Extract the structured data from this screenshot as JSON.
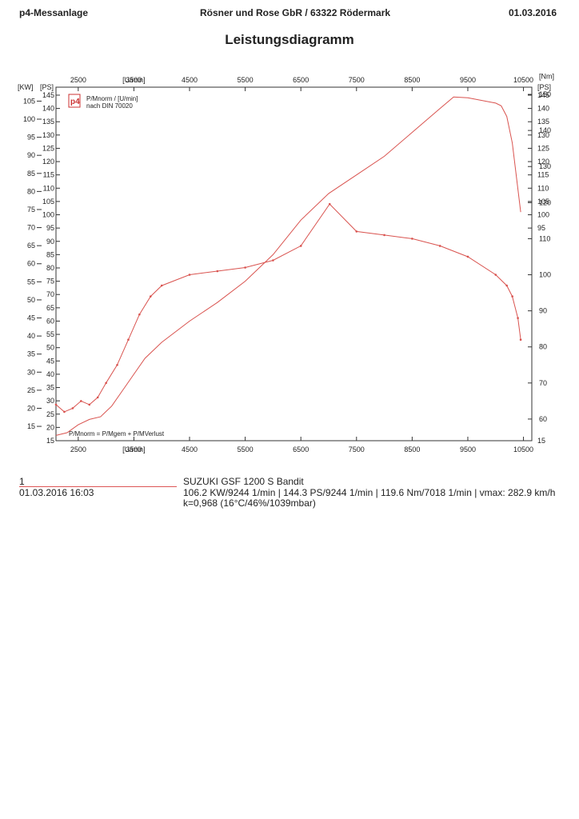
{
  "header": {
    "left": "p4-Messanlage",
    "center": "Rösner und Rose GbR  /  63322 Rödermark",
    "date": "01.03.2016"
  },
  "title": "Leistungsdiagramm",
  "legend": {
    "line1": "P/Mnorm / [U/min]",
    "line2": "nach DIN 70020",
    "formula": "P/Mnorm = P/Mgem + P/MVerlust",
    "logo": "p4"
  },
  "colors": {
    "curve": "#d9534f",
    "frame": "#333333"
  },
  "footer": {
    "run_no": "1",
    "run_date": "01.03.2016  16:03",
    "vehicle": "SUZUKI GSF 1200 S Bandit",
    "results": "106.2 KW/9244 1/min  |  144.3 PS/9244 1/min  |  119.6 Nm/7018 1/min | vmax: 282.9 km/h",
    "conditions": "k=0,968 (16°C/46%/1039mbar)"
  },
  "chart_data": {
    "type": "line",
    "x_unit_label": "[U/min]",
    "x_ticks": [
      2500,
      3500,
      4500,
      5500,
      6500,
      7500,
      8500,
      9500,
      10500
    ],
    "xlim": [
      2100,
      10650
    ],
    "left_axes": [
      {
        "label": "[KW]",
        "ticks": [
          15,
          20,
          25,
          30,
          35,
          40,
          45,
          50,
          55,
          60,
          65,
          70,
          75,
          80,
          85,
          90,
          95,
          100,
          105
        ]
      },
      {
        "label": "[PS]",
        "ticks": [
          15,
          20,
          25,
          30,
          35,
          40,
          45,
          50,
          55,
          60,
          65,
          70,
          75,
          80,
          85,
          90,
          95,
          100,
          105,
          110,
          115,
          120,
          125,
          130,
          135,
          140,
          145
        ]
      }
    ],
    "right_ps_axis": {
      "label": "[PS]",
      "ticks": [
        95,
        100,
        105,
        110,
        115,
        120,
        125,
        130,
        135,
        140,
        145
      ]
    },
    "right_nm_axis": {
      "label": "[Nm]",
      "ticks": [
        60,
        70,
        80,
        90,
        100,
        110,
        120,
        130,
        140,
        150
      ]
    },
    "right_bottom_tick": "15",
    "ps_lim": [
      15,
      148
    ],
    "nm_lim": [
      54,
      152
    ],
    "series": [
      {
        "axis": "PS",
        "x": [
          2100,
          2300,
          2500,
          2700,
          2900,
          3100,
          3300,
          3500,
          3700,
          4000,
          4500,
          5000,
          5500,
          6000,
          6500,
          7000,
          7500,
          8000,
          8500,
          9000,
          9244,
          9500,
          10000,
          10100,
          10200,
          10300,
          10450
        ],
        "y": [
          17,
          18,
          21,
          23,
          24,
          28,
          34,
          40,
          46,
          52,
          60,
          67,
          75,
          85,
          98,
          108,
          115,
          122,
          131,
          140,
          144.3,
          144,
          142,
          141,
          137,
          127,
          101
        ]
      },
      {
        "axis": "Nm",
        "x": [
          2100,
          2250,
          2400,
          2550,
          2700,
          2850,
          3000,
          3200,
          3400,
          3600,
          3800,
          4000,
          4500,
          5000,
          5500,
          6000,
          6500,
          7018,
          7500,
          8000,
          8500,
          9000,
          9500,
          10000,
          10200,
          10300,
          10400,
          10450
        ],
        "y": [
          64,
          62,
          63,
          65,
          64,
          66,
          70,
          75,
          82,
          89,
          94,
          97,
          100,
          101,
          102,
          104,
          108,
          119.6,
          112,
          111,
          110,
          108,
          105,
          100,
          97,
          94,
          88,
          82
        ]
      }
    ]
  }
}
